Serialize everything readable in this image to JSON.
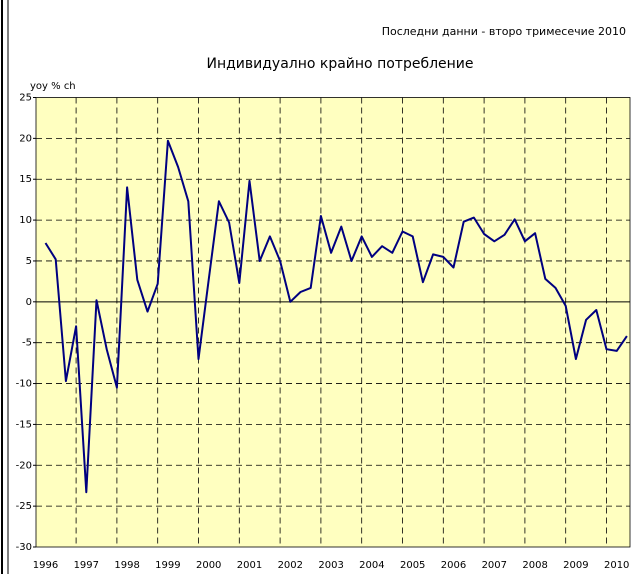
{
  "chart_data": {
    "type": "line",
    "note": "Последни данни - второ тримесечие 2010",
    "title": "Индивидуално крайно потребление",
    "y_label": "yoy % ch",
    "categories": [
      "1996",
      null,
      null,
      null,
      "1997",
      null,
      null,
      null,
      "1998",
      null,
      null,
      null,
      "1999",
      null,
      null,
      null,
      "2000",
      null,
      null,
      null,
      "2001",
      null,
      null,
      null,
      "2002",
      null,
      null,
      null,
      "2003",
      null,
      null,
      null,
      "2004",
      null,
      null,
      null,
      "2005",
      null,
      null,
      null,
      "2006",
      null,
      null,
      null,
      "2007",
      null,
      null,
      null,
      "2008",
      null,
      null,
      null,
      "2009",
      null,
      null,
      null,
      "2010",
      null
    ],
    "series": [
      {
        "name": null,
        "color": "#000080",
        "values": [
          7.2,
          5.2,
          -9.7,
          -3,
          -23.3,
          0.2,
          -5.8,
          -10.5,
          14,
          2.7,
          -1.2,
          2.2,
          19.7,
          16.5,
          12.3,
          -7,
          2.7,
          12.3,
          9.7,
          2.3,
          14.8,
          5.0,
          8.0,
          5.0,
          0.0,
          1.2,
          1.7,
          10.5,
          6.0,
          9.2,
          5.0,
          8.0,
          5.5,
          6.8,
          6.0,
          8.6,
          8.0,
          2.4,
          5.8,
          5.5,
          4.2,
          9.8,
          10.3,
          8.3,
          7.4,
          8.2,
          10.1,
          7.4,
          8.4,
          2.8,
          1.7,
          -0.5,
          -7.0,
          -2.2,
          -1.0,
          -5.8,
          -6.0,
          -4.2
        ]
      }
    ],
    "ylim": [
      -30,
      25
    ],
    "yticks": [
      -30,
      -25,
      -20,
      -15,
      -10,
      -5,
      0,
      5,
      10,
      15,
      20,
      25
    ],
    "grid": true
  }
}
